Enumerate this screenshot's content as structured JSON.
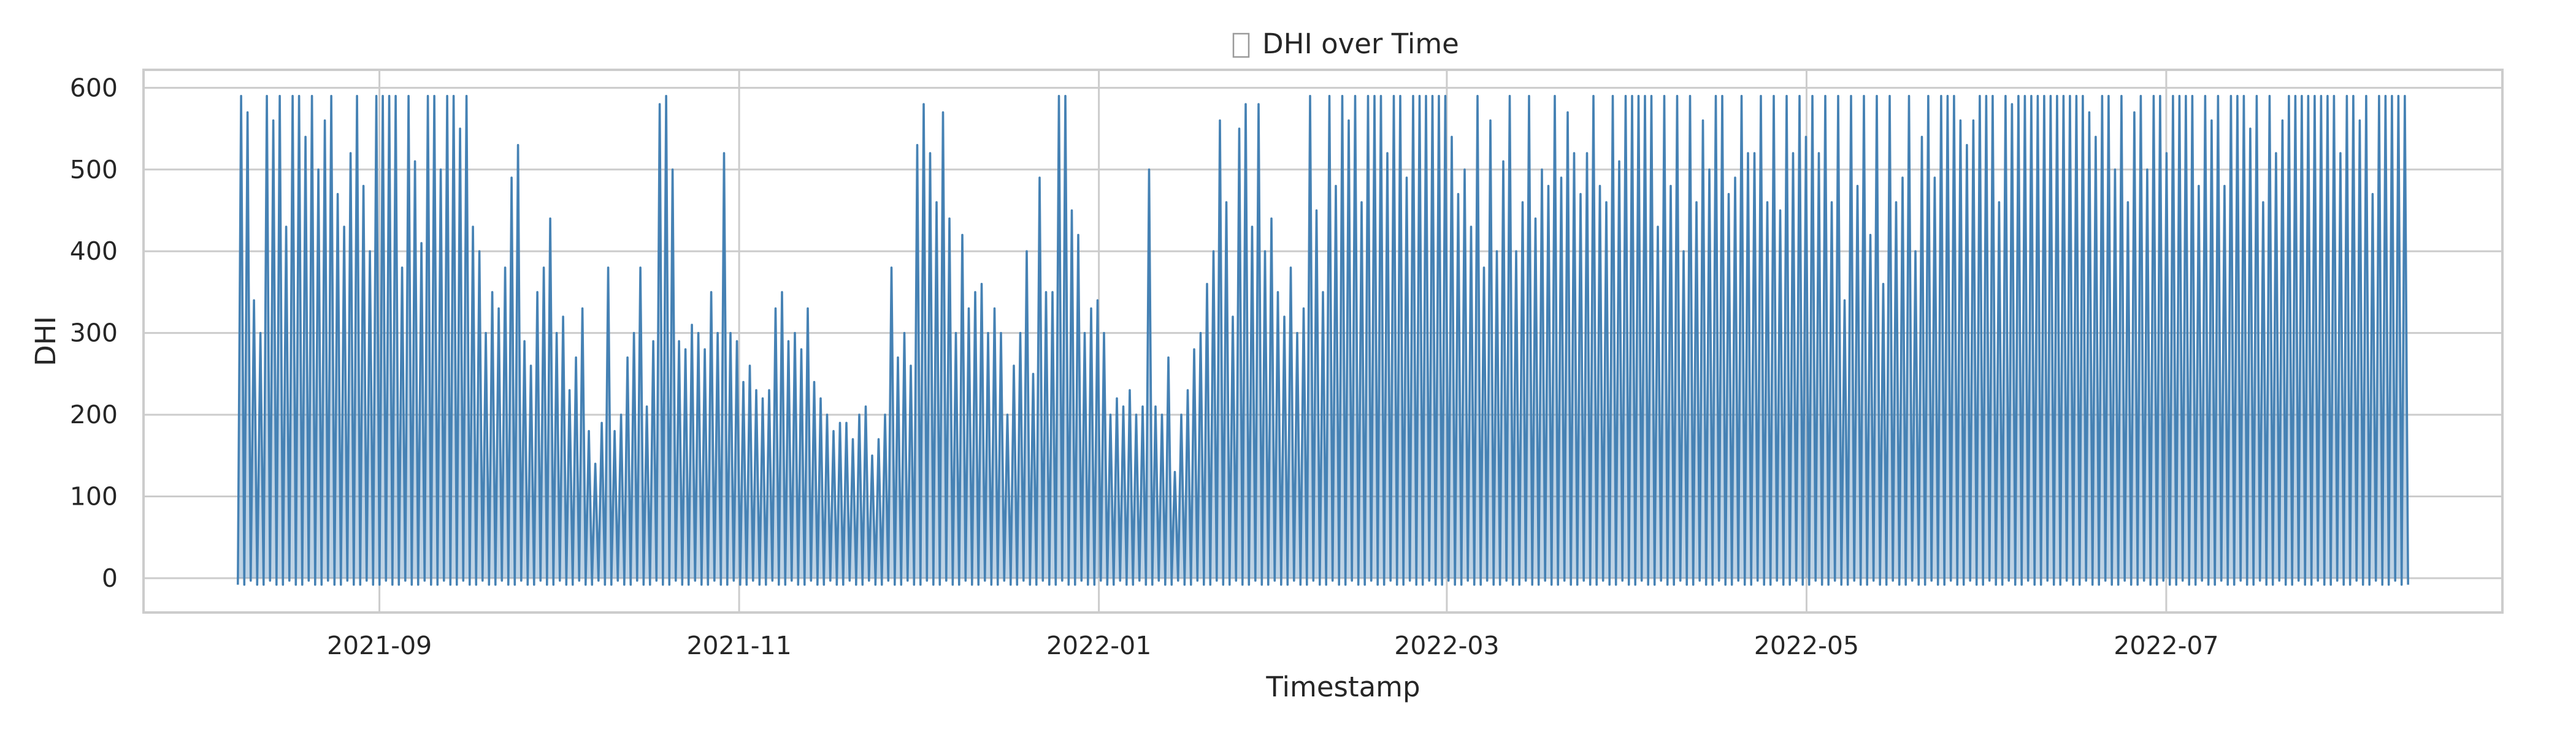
{
  "chart_data": {
    "type": "line",
    "title": "DHI over Time",
    "title_icon": "missing-glyph-box",
    "xlabel": "Timestamp",
    "ylabel": "DHI",
    "x_ticks": [
      "2021-09",
      "2021-11",
      "2022-01",
      "2022-03",
      "2022-05",
      "2022-07"
    ],
    "y_ticks": [
      0,
      100,
      200,
      300,
      400,
      500,
      600
    ],
    "xlim": [
      "2021-07-23",
      "2022-08-27"
    ],
    "ylim": [
      -42,
      622
    ],
    "grid": true,
    "legend": "none",
    "line_color": "#4682b4",
    "series": [
      {
        "x_start": "2021-08-08",
        "x_end": "2022-08-11",
        "sampling": "daily peak values (hourly series, nightly returns to ~0)",
        "values": [
          590,
          570,
          340,
          300,
          590,
          560,
          590,
          430,
          590,
          590,
          540,
          590,
          500,
          560,
          590,
          470,
          430,
          520,
          590,
          480,
          400,
          590,
          590,
          590,
          590,
          380,
          590,
          510,
          410,
          590,
          590,
          500,
          590,
          590,
          550,
          590,
          430,
          400,
          300,
          350,
          330,
          380,
          490,
          530,
          290,
          260,
          350,
          380,
          440,
          300,
          320,
          230,
          270,
          330,
          180,
          140,
          190,
          380,
          180,
          200,
          270,
          300,
          380,
          210,
          290,
          580,
          590,
          500,
          290,
          280,
          310,
          300,
          280,
          350,
          300,
          520,
          300,
          290,
          240,
          260,
          230,
          220,
          230,
          330,
          350,
          290,
          300,
          280,
          330,
          240,
          220,
          200,
          180,
          190,
          190,
          170,
          200,
          210,
          150,
          170,
          200,
          380,
          270,
          300,
          260,
          530,
          580,
          520,
          460,
          570,
          440,
          300,
          420,
          330,
          350,
          360,
          300,
          330,
          300,
          200,
          260,
          300,
          400,
          250,
          490,
          350,
          350,
          590,
          590,
          450,
          420,
          300,
          330,
          340,
          300,
          200,
          220,
          210,
          230,
          200,
          210,
          500,
          210,
          200,
          270,
          130,
          200,
          230,
          280,
          300,
          360,
          400,
          560,
          460,
          320,
          550,
          580,
          430,
          580,
          400,
          440,
          350,
          320,
          380,
          300,
          330,
          590,
          450,
          350,
          590,
          480,
          590,
          560,
          590,
          460,
          590,
          590,
          590,
          520,
          590,
          590,
          490,
          590,
          590,
          590,
          590,
          590,
          590,
          540,
          470,
          500,
          430,
          590,
          380,
          560,
          400,
          510,
          590,
          400,
          460,
          590,
          440,
          500,
          480,
          590,
          490,
          570,
          520,
          470,
          520,
          590,
          480,
          460,
          590,
          510,
          590,
          590,
          590,
          590,
          590,
          430,
          590,
          480,
          590,
          400,
          590,
          460,
          560,
          500,
          590,
          590,
          470,
          490,
          590,
          520,
          520,
          590,
          460,
          590,
          450,
          590,
          520,
          590,
          540,
          590,
          520,
          590,
          460,
          590,
          340,
          590,
          480,
          590,
          420,
          590,
          360,
          590,
          460,
          490,
          590,
          400,
          540,
          590,
          490,
          590,
          590,
          590,
          560,
          530,
          560,
          590,
          590,
          590,
          460,
          590,
          580,
          590,
          590,
          590,
          590,
          590,
          590,
          590,
          590,
          590,
          590,
          590,
          570,
          540,
          590,
          590,
          500,
          590,
          460,
          570,
          590,
          500,
          590,
          590,
          520,
          590,
          590,
          590,
          590,
          480,
          590,
          560,
          590,
          480,
          590,
          590,
          590,
          550,
          590,
          460,
          590,
          520,
          560,
          590,
          590,
          590,
          590,
          590,
          590,
          590,
          590,
          520,
          590,
          590,
          560,
          590,
          470,
          590,
          590,
          590,
          590,
          590
        ]
      }
    ]
  }
}
